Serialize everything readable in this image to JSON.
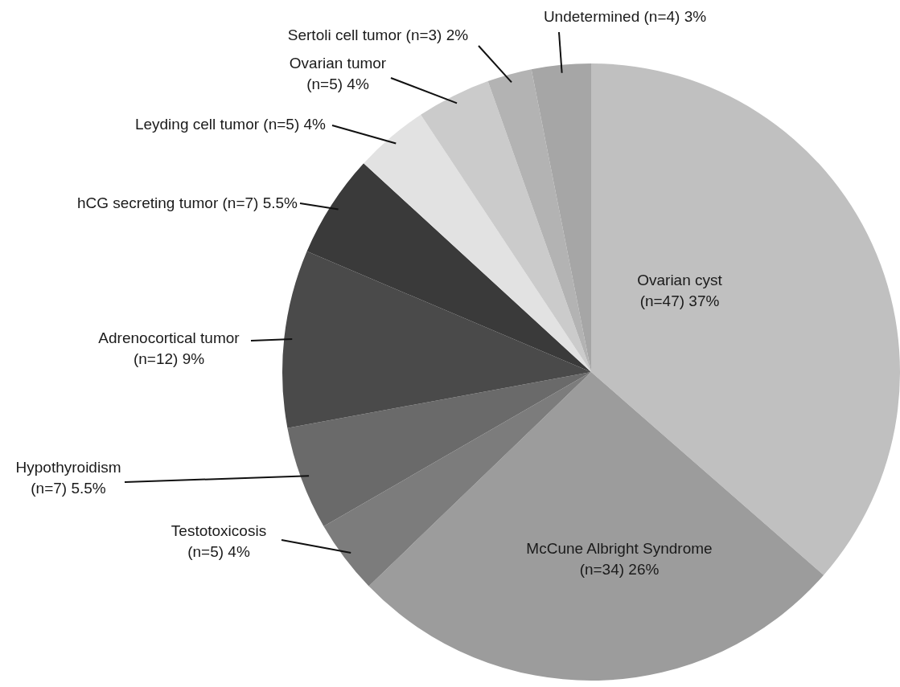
{
  "chart_data": {
    "type": "pie",
    "categories": [
      "Ovarian cyst",
      "McCune Albright Syndrome",
      "Testotoxicosis",
      "Hypothyroidism",
      "Adrenocortical tumor",
      "hCG secreting tumor",
      "Leyding cell tumor",
      "Ovarian tumor",
      "Sertoli cell tumor",
      "Undetermined"
    ],
    "values": [
      47,
      34,
      5,
      7,
      12,
      7,
      5,
      5,
      3,
      4
    ],
    "value_labels": [
      "(n=47) 37%",
      "(n=34) 26%",
      "(n=5) 4%",
      "(n=7) 5.5%",
      "(n=12) 9%",
      "(n=7) 5.5%",
      "(n=5) 4%",
      "(n=5) 4%",
      "(n=3) 2%",
      "(n=4) 3%"
    ],
    "colors": [
      "#c0c0c0",
      "#9c9c9c",
      "#7c7c7c",
      "#6a6a6a",
      "#4a4a4a",
      "#3a3a3a",
      "#e2e2e2",
      "#cbcbcb",
      "#b3b3b3",
      "#a6a6a6"
    ],
    "legend": false
  }
}
